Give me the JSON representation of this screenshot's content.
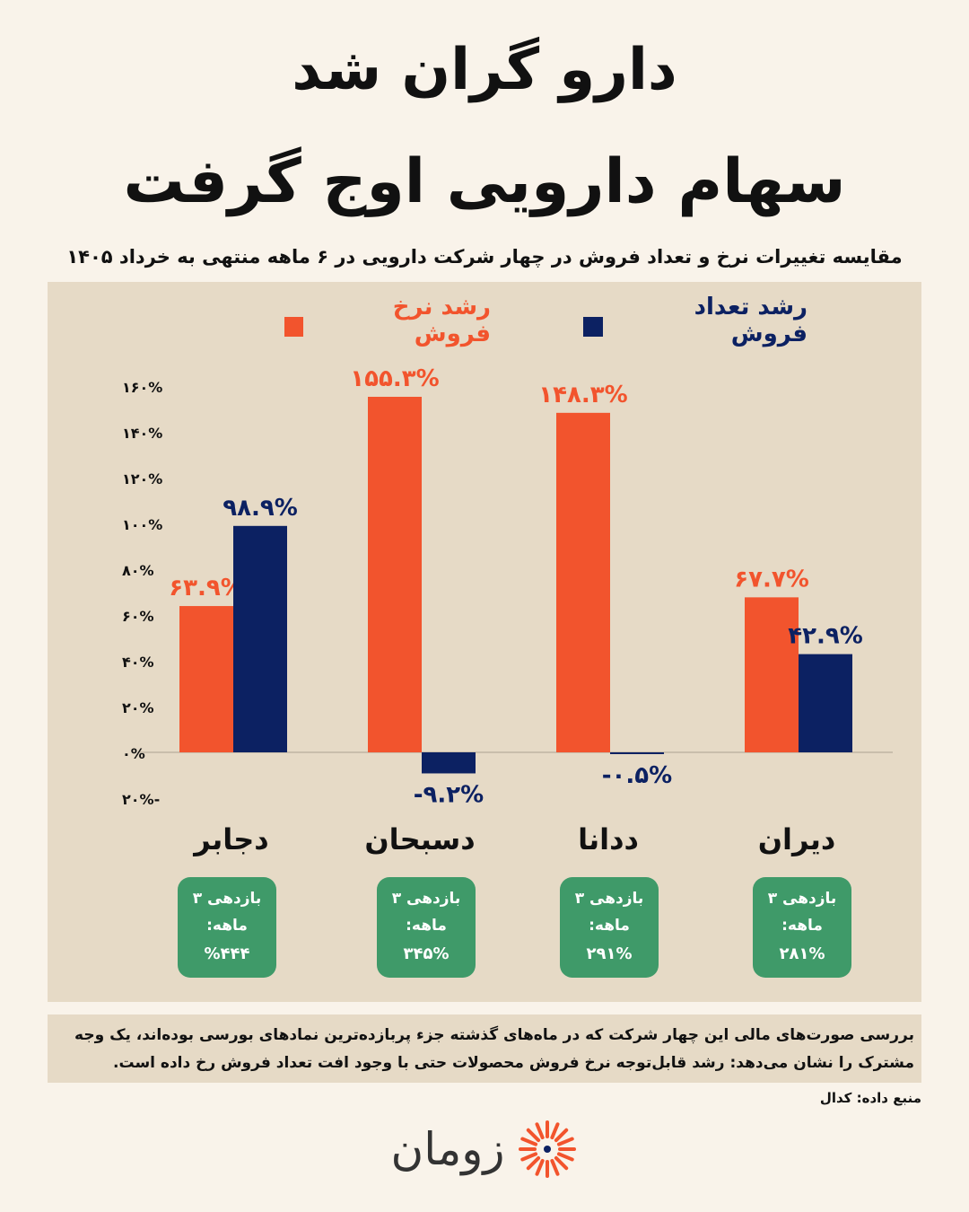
{
  "title_line1": "دارو گران شد",
  "title_line2": "سهام دارویی اوج گرفت",
  "subtitle": "مقایسه تغییرات نرخ و تعداد فروش در چهار شرکت دارویی در ۶ ماهه منتهی به خرداد ۱۴۰۵",
  "colors": {
    "rate": "#f2542d",
    "count": "#0c2162",
    "badge": "#3f9a69",
    "panel": "#e6dac6",
    "background": "#f9f3ea"
  },
  "chart_data": {
    "type": "bar",
    "categories": [
      "دجابر",
      "دسبحان",
      "ددانا",
      "دیران"
    ],
    "series": [
      {
        "name": "رشد نرخ فروش",
        "values": [
          63.9,
          155.3,
          148.3,
          67.7
        ],
        "labels": [
          "۶۳.۹%",
          "۱۵۵.۳%",
          "۱۴۸.۳%",
          "۶۷.۷%"
        ]
      },
      {
        "name": "رشد تعداد فروش",
        "values": [
          98.9,
          -9.2,
          -0.5,
          42.9
        ],
        "labels": [
          "۹۸.۹%",
          "-۹.۲%",
          "-۰.۵%",
          "۴۲.۹%"
        ]
      }
    ],
    "ylim": [
      -20,
      160
    ],
    "yticks": [
      160,
      140,
      120,
      100,
      80,
      60,
      40,
      20,
      0,
      -20
    ],
    "ytick_labels": [
      "۱۶۰%",
      "۱۴۰%",
      "۱۲۰%",
      "۱۰۰%",
      "۸۰%",
      "۶۰%",
      "۴۰%",
      "۲۰%",
      "۰%",
      "-۲۰%"
    ],
    "grid": false,
    "legend_position": "top"
  },
  "badges": {
    "label_line1": "بازدهی ۳",
    "label_line2": "ماهه:",
    "values": [
      "%۴۴۴",
      "۳۴۵%",
      "۲۹۱%",
      "۲۸۱%"
    ]
  },
  "note": "بررسی صورت‌های مالی این چهار شرکت که در ماه‌های گذشته جزء پربازده‌ترین نمادهای بورسی بوده‌اند، یک وجه مشترک را نشان می‌دهد: رشد قابل‌توجه نرخ فروش محصولات حتی با وجود افت تعداد فروش رخ داده است.",
  "source": "منبع داده: کدال",
  "logo_text": "زومان"
}
